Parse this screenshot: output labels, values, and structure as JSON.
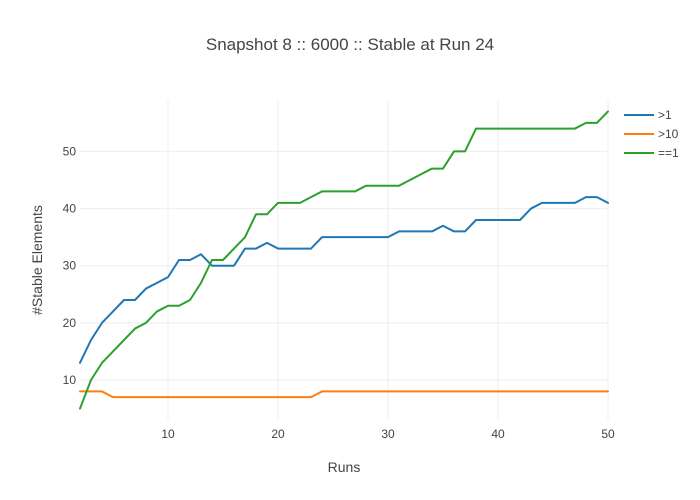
{
  "chart_data": {
    "type": "line",
    "title": "Snapshot 8 :: 6000 :: Stable at Run 24",
    "xlabel": "Runs",
    "ylabel": "#Stable Elements",
    "xlim": [
      2,
      50
    ],
    "ylim": [
      3,
      59
    ],
    "xticks": [
      10,
      20,
      30,
      40,
      50
    ],
    "yticks": [
      10,
      20,
      30,
      40,
      50
    ],
    "grid": true,
    "legend_position": "top-right",
    "x": [
      2,
      3,
      4,
      5,
      6,
      7,
      8,
      9,
      10,
      11,
      12,
      13,
      14,
      15,
      16,
      17,
      18,
      19,
      20,
      21,
      22,
      23,
      24,
      25,
      26,
      27,
      28,
      29,
      30,
      31,
      32,
      33,
      34,
      35,
      36,
      37,
      38,
      39,
      40,
      41,
      42,
      43,
      44,
      45,
      46,
      47,
      48,
      49,
      50
    ],
    "series": [
      {
        "name": ">1",
        "color": "#1f77b4",
        "values": [
          13,
          17,
          20,
          22,
          24,
          24,
          26,
          27,
          28,
          31,
          31,
          32,
          30,
          30,
          30,
          33,
          33,
          34,
          33,
          33,
          33,
          33,
          35,
          35,
          35,
          35,
          35,
          35,
          35,
          36,
          36,
          36,
          36,
          37,
          36,
          36,
          38,
          38,
          38,
          38,
          38,
          40,
          41,
          41,
          41,
          41,
          42,
          42,
          41
        ]
      },
      {
        "name": ">10",
        "color": "#ff7f0e",
        "values": [
          8,
          8,
          8,
          7,
          7,
          7,
          7,
          7,
          7,
          7,
          7,
          7,
          7,
          7,
          7,
          7,
          7,
          7,
          7,
          7,
          7,
          7,
          8,
          8,
          8,
          8,
          8,
          8,
          8,
          8,
          8,
          8,
          8,
          8,
          8,
          8,
          8,
          8,
          8,
          8,
          8,
          8,
          8,
          8,
          8,
          8,
          8,
          8,
          8
        ]
      },
      {
        "name": "==1",
        "color": "#2ca02c",
        "values": [
          5,
          10,
          13,
          15,
          17,
          19,
          20,
          22,
          23,
          23,
          24,
          27,
          31,
          31,
          33,
          35,
          39,
          39,
          41,
          41,
          41,
          42,
          43,
          43,
          43,
          43,
          44,
          44,
          44,
          44,
          45,
          46,
          47,
          47,
          50,
          50,
          54,
          54,
          54,
          54,
          54,
          54,
          54,
          54,
          54,
          54,
          55,
          55,
          57
        ]
      }
    ]
  }
}
